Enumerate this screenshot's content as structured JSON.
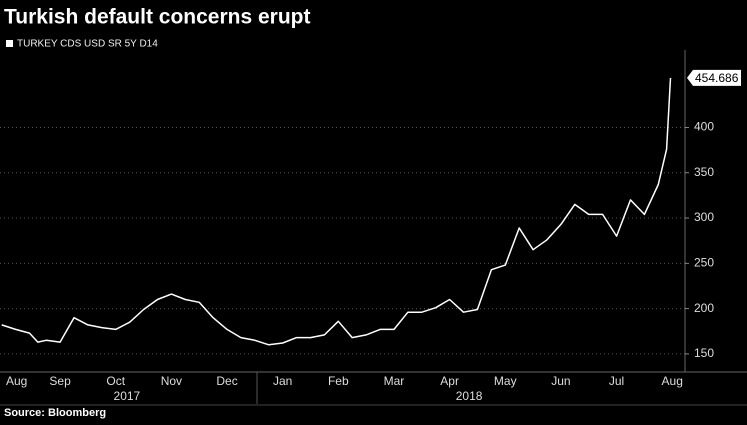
{
  "chart_data": {
    "type": "line",
    "title": "Turkish default concerns erupt",
    "source": "Source: Bloomberg",
    "series": [
      {
        "name": "TURKEY CDS USD SR 5Y D14",
        "color": "#ffffff",
        "x": [
          0.45,
          0.7,
          0.95,
          1.1,
          1.25,
          1.5,
          1.75,
          2.0,
          2.25,
          2.5,
          2.75,
          3.0,
          3.25,
          3.5,
          3.75,
          4.0,
          4.25,
          4.5,
          4.75,
          5.0,
          5.25,
          5.5,
          5.75,
          6.0,
          6.25,
          6.5,
          6.75,
          7.0,
          7.25,
          7.5,
          7.75,
          8.0,
          8.25,
          8.5,
          8.75,
          9.0,
          9.25,
          9.5,
          9.75,
          10.0,
          10.25,
          10.5,
          10.75,
          11.0,
          11.25,
          11.5,
          11.75,
          12.0,
          12.25,
          12.4,
          12.47
        ],
        "values": [
          182,
          177,
          173,
          163,
          165,
          163,
          190,
          182,
          179,
          177,
          185,
          199,
          210,
          216,
          210,
          207,
          190,
          177,
          168,
          165,
          160,
          162,
          168,
          168,
          171,
          186,
          168,
          171,
          177,
          177,
          196,
          196,
          201,
          210,
          196,
          199,
          243,
          248,
          289,
          265,
          276,
          293,
          315,
          304,
          304,
          280,
          320,
          304,
          337,
          376,
          454.686
        ]
      }
    ],
    "xlim": [
      0.42,
      12.73
    ],
    "xticks": [
      {
        "value": 0.72,
        "label": "Aug"
      },
      {
        "value": 1.5,
        "label": "Sep"
      },
      {
        "value": 2.5,
        "label": "Oct"
      },
      {
        "value": 3.5,
        "label": "Nov"
      },
      {
        "value": 4.5,
        "label": "Dec"
      },
      {
        "value": 5.5,
        "label": "Jan"
      },
      {
        "value": 6.5,
        "label": "Feb"
      },
      {
        "value": 7.5,
        "label": "Mar"
      },
      {
        "value": 8.5,
        "label": "Apr"
      },
      {
        "value": 9.5,
        "label": "May"
      },
      {
        "value": 10.5,
        "label": "Jun"
      },
      {
        "value": 11.5,
        "label": "Jul"
      },
      {
        "value": 12.5,
        "label": "Aug"
      }
    ],
    "year_ticks": [
      {
        "value": 2.7,
        "label": "2017"
      },
      {
        "value": 8.85,
        "label": "2018"
      }
    ],
    "ylim": [
      130,
      480
    ],
    "yticks": [
      150,
      200,
      250,
      300,
      350,
      400
    ],
    "grid": true
  }
}
